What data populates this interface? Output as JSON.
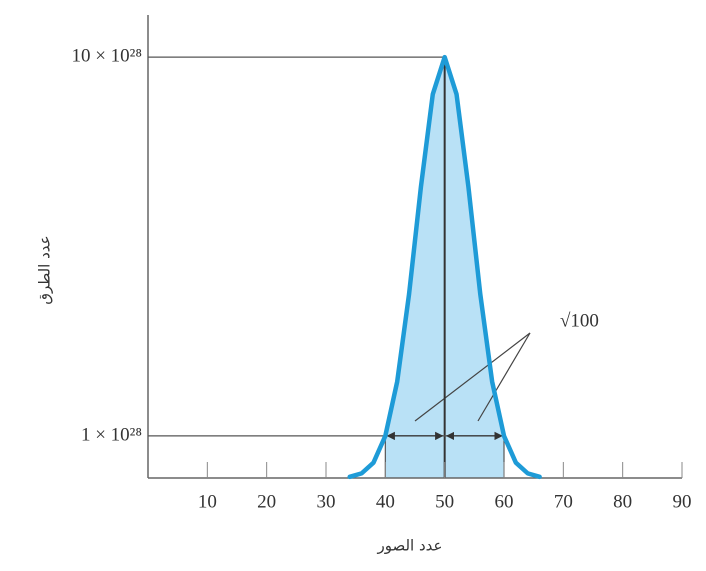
{
  "chart_data": {
    "type": "line",
    "x_label": "عدد الصور",
    "y_label": "عدد الطرق",
    "annotation": "√100",
    "x": [
      34,
      36,
      38,
      40,
      42,
      44,
      46,
      48,
      50,
      52,
      54,
      56,
      58,
      60,
      62,
      64,
      66
    ],
    "series": [
      {
        "name": null,
        "color": "#1e9bd7",
        "values": [
          2.76e+26,
          1.1e+27,
          3.63e+27,
          1e+28,
          2.29e+28,
          4.37e+28,
          6.92e+28,
          9.12e+28,
          1e+29,
          9.12e+28,
          6.92e+28,
          4.37e+28,
          2.29e+28,
          1e+28,
          3.63e+27,
          1.1e+27,
          2.76e+26
        ]
      }
    ],
    "fill_color": "#b9e1f6",
    "shade_range": [
      40,
      60
    ],
    "xlim": [
      0,
      90
    ],
    "xticks": [
      10,
      20,
      30,
      40,
      50,
      60,
      70,
      80,
      90
    ],
    "ylim": [
      0,
      1.1e+29
    ],
    "yticks": [
      {
        "value": 1e+28,
        "label": "1 × 10²⁸"
      },
      {
        "value": 1e+29,
        "label": "10 × 10²⁸"
      }
    ]
  }
}
